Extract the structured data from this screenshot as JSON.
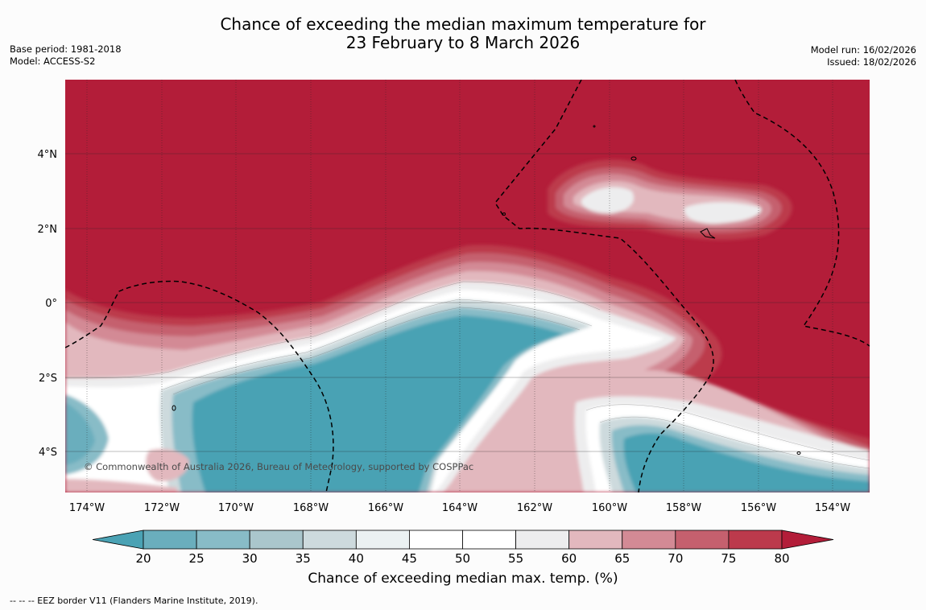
{
  "title": {
    "line1": "Chance of exceeding the median maximum temperature for",
    "line2": "23 February to 8 March 2026"
  },
  "meta_left": {
    "base_period": "Base period: 1981-2018",
    "model": "Model: ACCESS-S2"
  },
  "meta_right": {
    "model_run": "Model run: 16/02/2026",
    "issued": "Issued: 18/02/2026"
  },
  "map": {
    "copyright": "© Commonwealth of Australia 2026, Bureau of Meteorology, supported by COSPPac",
    "lon_labels": [
      "174°W",
      "172°W",
      "170°W",
      "168°W",
      "166°W",
      "164°W",
      "162°W",
      "160°W",
      "158°W",
      "156°W",
      "154°W"
    ],
    "lat_labels": [
      "4°N",
      "2°N",
      "0°",
      "2°S",
      "4°S"
    ],
    "colors": {
      "hot_extreme": "#b31d39",
      "cold_extreme": "#4aa2b4"
    }
  },
  "colorbar": {
    "ticks": [
      "20",
      "25",
      "30",
      "35",
      "40",
      "45",
      "50",
      "55",
      "60",
      "65",
      "70",
      "75",
      "80"
    ],
    "colors": [
      "#4aa2b4",
      "#6aaebd",
      "#88bcc7",
      "#aac6cc",
      "#cddadd",
      "#ebf1f2",
      "#ffffff",
      "#ffffff",
      "#ededee",
      "#e2b8be",
      "#d38a95",
      "#c5606e",
      "#bc3a4c",
      "#b31d39"
    ],
    "label": "Chance of exceeding median max. temp. (%)"
  },
  "footnote": "--  --  -- EEZ border V11 (Flanders Marine Institute, 2019)."
}
